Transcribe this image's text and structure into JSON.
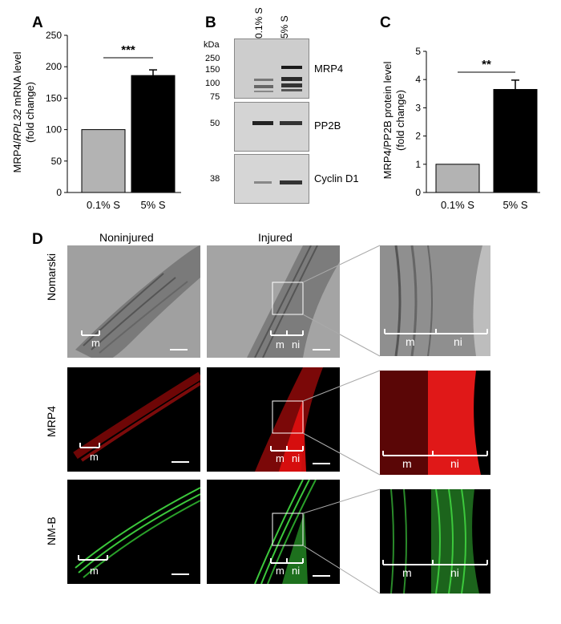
{
  "panels": {
    "A": "A",
    "B": "B",
    "C": "C",
    "D": "D"
  },
  "panel_a": {
    "ylabel_pre": "MRP4/",
    "ylabel_italic": "RPL32",
    "ylabel_post": " mRNA level",
    "ylabel_line2": "(fold change)",
    "significance": "***",
    "yticks": [
      "0",
      "50",
      "100",
      "150",
      "200",
      "250"
    ]
  },
  "panel_c": {
    "ylabel_line1": "MRP4/PP2B protein level",
    "ylabel_line2": "(fold change)",
    "significance": "**",
    "yticks": [
      "0",
      "1",
      "2",
      "3",
      "4",
      "5"
    ]
  },
  "panel_b": {
    "lanes": [
      "0.1% S",
      "5% S"
    ],
    "kda": "kDa",
    "blots": [
      {
        "name": "MRP4",
        "markers": [
          "250",
          "150",
          "100",
          "75"
        ]
      },
      {
        "name": "PP2B",
        "markers": [
          "50"
        ]
      },
      {
        "name": "Cyclin D1",
        "markers": [
          "38"
        ]
      }
    ]
  },
  "panel_d": {
    "col_noninjured": "Noninjured",
    "col_injured": "Injured",
    "rows": [
      "Nomarski",
      "MRP4",
      "NM-B"
    ],
    "region_m": "m",
    "region_ni": "ni"
  },
  "colors": {
    "bar_low": "#b3b3b3",
    "bar_high": "#000000",
    "mrp4_red": "#e01010",
    "nmb_green": "#3cc83c"
  },
  "chart_data": [
    {
      "type": "bar",
      "categories": [
        "0.1% S",
        "5% S"
      ],
      "values": [
        100,
        186
      ],
      "errors": [
        0,
        9
      ],
      "ylim": [
        0,
        250
      ],
      "significance": "***"
    },
    {
      "type": "bar",
      "categories": [
        "0.1% S",
        "5% S"
      ],
      "values": [
        1,
        3.65
      ],
      "errors": [
        0,
        0.33
      ],
      "ylim": [
        0,
        5
      ],
      "significance": "**"
    }
  ]
}
